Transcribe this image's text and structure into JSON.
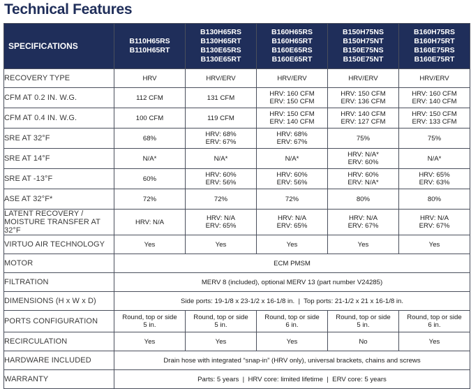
{
  "title": "Technical Features",
  "header": {
    "spec_label": "SPECIFICATIONS",
    "columns": [
      [
        "B110H65RS",
        "B110H65RT"
      ],
      [
        "B130H65RS",
        "B130H65RT",
        "B130E65RS",
        "B130E65RT"
      ],
      [
        "B160H65RS",
        "B160H65RT",
        "B160E65RS",
        "B160E65RT"
      ],
      [
        "B150H75NS",
        "B150H75NT",
        "B150E75NS",
        "B150E75NT"
      ],
      [
        "B160H75RS",
        "B160H75RT",
        "B160E75RS",
        "B160E75RT"
      ]
    ]
  },
  "rows": [
    {
      "label": "RECOVERY TYPE",
      "values": [
        [
          "HRV"
        ],
        [
          "HRV/ERV"
        ],
        [
          "HRV/ERV"
        ],
        [
          "HRV/ERV"
        ],
        [
          "HRV/ERV"
        ]
      ]
    },
    {
      "label": "CFM AT 0.2 IN. W.G.",
      "values": [
        [
          "112 CFM"
        ],
        [
          "131 CFM"
        ],
        [
          "HRV: 160 CFM",
          "ERV: 150 CFM"
        ],
        [
          "HRV: 150 CFM",
          "ERV: 136 CFM"
        ],
        [
          "HRV: 160 CFM",
          "ERV: 140 CFM"
        ]
      ]
    },
    {
      "label": "CFM AT 0.4 IN. W.G.",
      "values": [
        [
          "100 CFM"
        ],
        [
          "119 CFM"
        ],
        [
          "HRV: 150 CFM",
          "ERV: 140 CFM"
        ],
        [
          "HRV: 140 CFM",
          "ERV: 127 CFM"
        ],
        [
          "HRV: 150 CFM",
          "ERV: 133 CFM"
        ]
      ]
    },
    {
      "label": "SRE AT 32°F",
      "values": [
        [
          "68%"
        ],
        [
          "HRV: 68%",
          "ERV: 67%"
        ],
        [
          "HRV: 68%",
          "ERV: 67%"
        ],
        [
          "75%"
        ],
        [
          "75%"
        ]
      ]
    },
    {
      "label": "SRE AT 14°F",
      "values": [
        [
          "N/A*"
        ],
        [
          "N/A*"
        ],
        [
          "N/A*"
        ],
        [
          "HRV: N/A*",
          "ERV: 60%"
        ],
        [
          "N/A*"
        ]
      ]
    },
    {
      "label": "SRE AT -13°F",
      "values": [
        [
          "60%"
        ],
        [
          "HRV: 60%",
          "ERV: 56%"
        ],
        [
          "HRV: 60%",
          "ERV: 56%"
        ],
        [
          "HRV: 60%",
          "ERV: N/A*"
        ],
        [
          "HRV: 65%",
          "ERV: 63%"
        ]
      ]
    },
    {
      "label": "ASE AT 32°F*",
      "values": [
        [
          "72%"
        ],
        [
          "72%"
        ],
        [
          "72%"
        ],
        [
          "80%"
        ],
        [
          "80%"
        ]
      ]
    },
    {
      "label_lines": [
        "LATENT RECOVERY /",
        "MOISTURE TRANSFER AT 32°F"
      ],
      "values": [
        [
          "HRV: N/A"
        ],
        [
          "HRV: N/A",
          "ERV: 65%"
        ],
        [
          "HRV: N/A",
          "ERV: 65%"
        ],
        [
          "HRV: N/A",
          "ERV: 67%"
        ],
        [
          "HRV: N/A",
          "ERV: 67%"
        ]
      ]
    },
    {
      "label": "VIRTUO AIR TECHNOLOGY",
      "values": [
        [
          "Yes"
        ],
        [
          "Yes"
        ],
        [
          "Yes"
        ],
        [
          "Yes"
        ],
        [
          "Yes"
        ]
      ]
    },
    {
      "label": "MOTOR",
      "merged": "ECM PMSM"
    },
    {
      "label": "FILTRATION",
      "merged": "MERV 8 (included), optional MERV 13 (part number V24285)"
    },
    {
      "label": "DIMENSIONS (H x W x D)",
      "merged": "Side ports: 19-1/8 x 23-1/2 x 16-1/8 in.  |  Top ports: 21-1/2 x 21 x 16-1/8 in."
    },
    {
      "label": "PORTS CONFIGURATION",
      "values": [
        [
          "Round, top or side",
          "5 in."
        ],
        [
          "Round, top or side",
          "5 in."
        ],
        [
          "Round, top or side",
          "6 in."
        ],
        [
          "Round, top or side",
          "5 in."
        ],
        [
          "Round, top or side",
          "6 in."
        ]
      ]
    },
    {
      "label": "RECIRCULATION",
      "values": [
        [
          "Yes"
        ],
        [
          "Yes"
        ],
        [
          "Yes"
        ],
        [
          "No"
        ],
        [
          "Yes"
        ]
      ]
    },
    {
      "label": "HARDWARE INCLUDED",
      "merged": "Drain hose with integrated “snap-in” (HRV only), universal brackets, chains and screws"
    },
    {
      "label": "WARRANTY",
      "merged": "Parts: 5 years  |  HRV core: limited lifetime  |  ERV core: 5 years"
    }
  ],
  "colors": {
    "header_bg": "#1f2e5a",
    "title": "#1f2e5a",
    "shaded_cell": "#dfe6f1",
    "border": "#4a4f5c"
  }
}
